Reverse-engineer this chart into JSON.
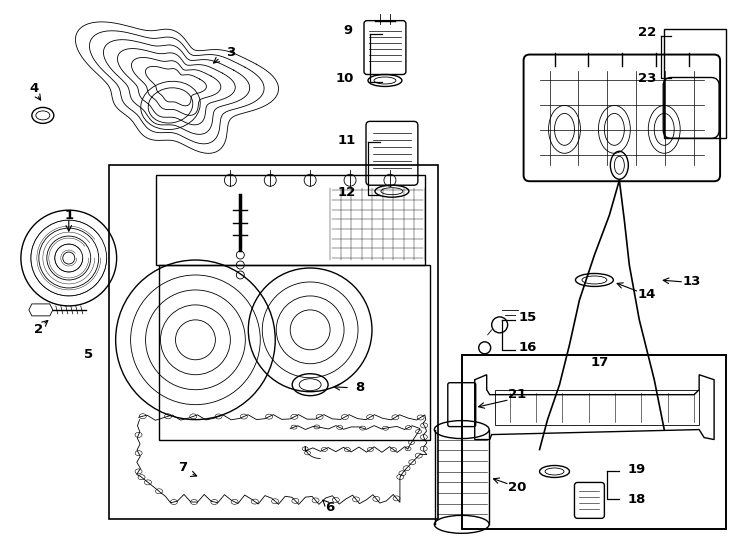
{
  "bg": "#ffffff",
  "lc": "#1a1a1a",
  "fig_w": 7.34,
  "fig_h": 5.4,
  "dpi": 100,
  "label_fs": 9.5,
  "label_bold": true
}
